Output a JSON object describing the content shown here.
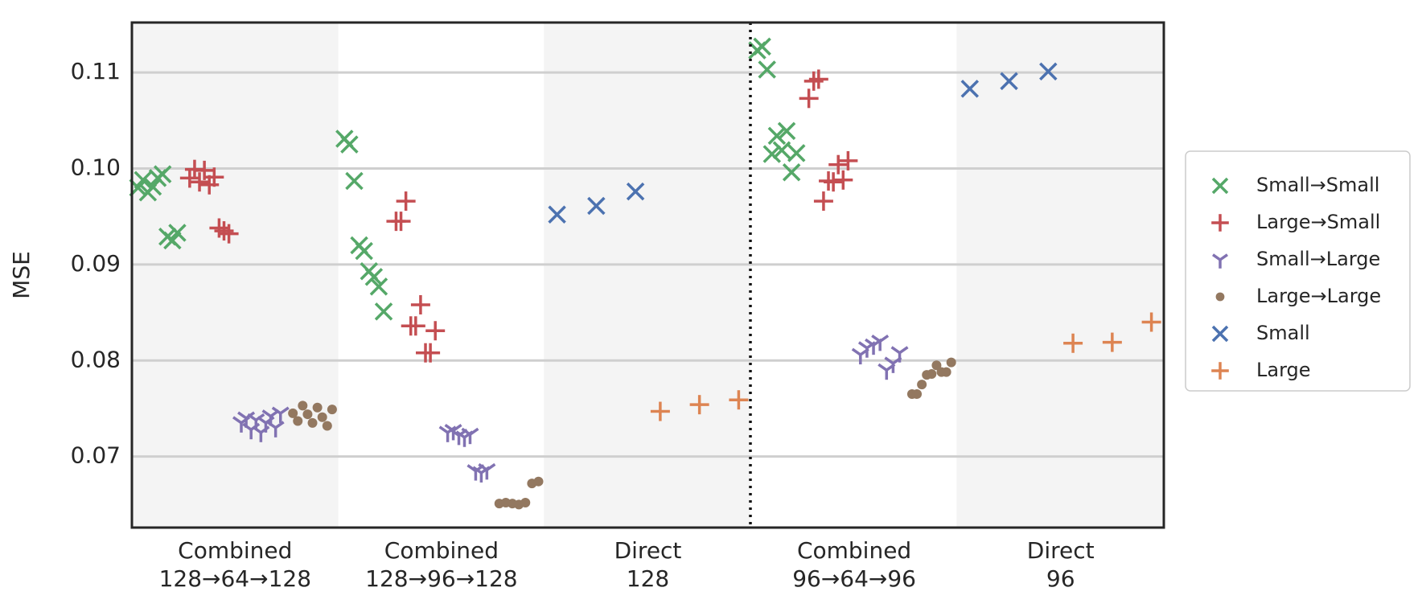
{
  "chart_data": {
    "type": "strip",
    "y_label": "MSE",
    "categories": [
      [
        "Combined",
        "128→64→128"
      ],
      [
        "Combined",
        "128→96→128"
      ],
      [
        "Direct",
        "128"
      ],
      [
        "Combined",
        "96→64→96"
      ],
      [
        "Direct",
        "96"
      ]
    ],
    "ylim": [
      0.0626,
      0.1152
    ],
    "yticks": [
      0.07,
      0.08,
      0.09,
      {
        "value": 0.1,
        "label": "0.10"
      },
      0.11
    ],
    "grid": true,
    "legend": "right",
    "series": [
      {
        "name": "Small→Small",
        "color": "#55a868",
        "marker": "x",
        "values": [
          [
            0.098,
            0.0988,
            0.0975,
            0.0981,
            0.099,
            0.0994,
            0.0929,
            0.0925,
            0.0933
          ],
          [
            0.1031,
            0.1025,
            0.0987,
            0.092,
            0.0914,
            0.0893,
            0.0887,
            0.0877,
            0.0851
          ],
          null,
          [
            0.1123,
            0.1127,
            0.1103,
            0.1015,
            0.1034,
            0.1019,
            0.1039,
            0.0996,
            0.1016
          ],
          null
        ]
      },
      {
        "name": "Large→Small",
        "color": "#c44e52",
        "marker": "+",
        "values": [
          [
            0.099,
            0.0999,
            0.0986,
            0.0998,
            0.0983,
            0.0991,
            0.0938,
            0.0935,
            0.0932
          ],
          [
            0.0945,
            0.0945,
            0.0966,
            0.0836,
            0.0836,
            0.0858,
            0.0808,
            0.0808,
            0.0831
          ],
          null,
          [
            0.1073,
            0.1091,
            0.1093,
            0.0966,
            0.0987,
            0.0986,
            0.1004,
            0.0988,
            0.1008
          ],
          null
        ]
      },
      {
        "name": "Small→Large",
        "color": "#8172b2",
        "marker": "tri_down",
        "values": [
          [
            0.0735,
            0.074,
            0.0728,
            0.0738,
            0.0725,
            0.0735,
            0.0742,
            0.073,
            0.0745
          ],
          [
            0.0725,
            0.0727,
            0.0722,
            0.072,
            0.0723,
            0.0685,
            0.0683,
            0.0686
          ],
          null,
          [
            0.0806,
            0.0813,
            0.0816,
            0.082,
            0.079,
            0.0797,
            0.0808
          ],
          null
        ]
      },
      {
        "name": "Large→Large",
        "color": "#937860",
        "marker": "o",
        "values": [
          [
            0.0745,
            0.0737,
            0.0753,
            0.0744,
            0.0735,
            0.0751,
            0.0741,
            0.0732,
            0.0749
          ],
          [
            0.0651,
            0.0652,
            0.0651,
            0.065,
            0.0652,
            0.0672,
            0.0674
          ],
          null,
          [
            0.0765,
            0.0765,
            0.0775,
            0.0785,
            0.0786,
            0.0795,
            0.0788,
            0.0788,
            0.0798
          ],
          null
        ]
      },
      {
        "name": "Small",
        "color": "#4c72b0",
        "marker": "x",
        "values": [
          null,
          null,
          [
            0.0952,
            0.0961,
            0.0976
          ],
          null,
          [
            0.1083,
            0.1091,
            0.1101
          ]
        ]
      },
      {
        "name": "Large",
        "color": "#dd8452",
        "marker": "+",
        "values": [
          null,
          null,
          [
            0.0747,
            0.0754,
            0.0759
          ],
          null,
          [
            0.0818,
            0.0819,
            0.084
          ]
        ]
      }
    ]
  }
}
